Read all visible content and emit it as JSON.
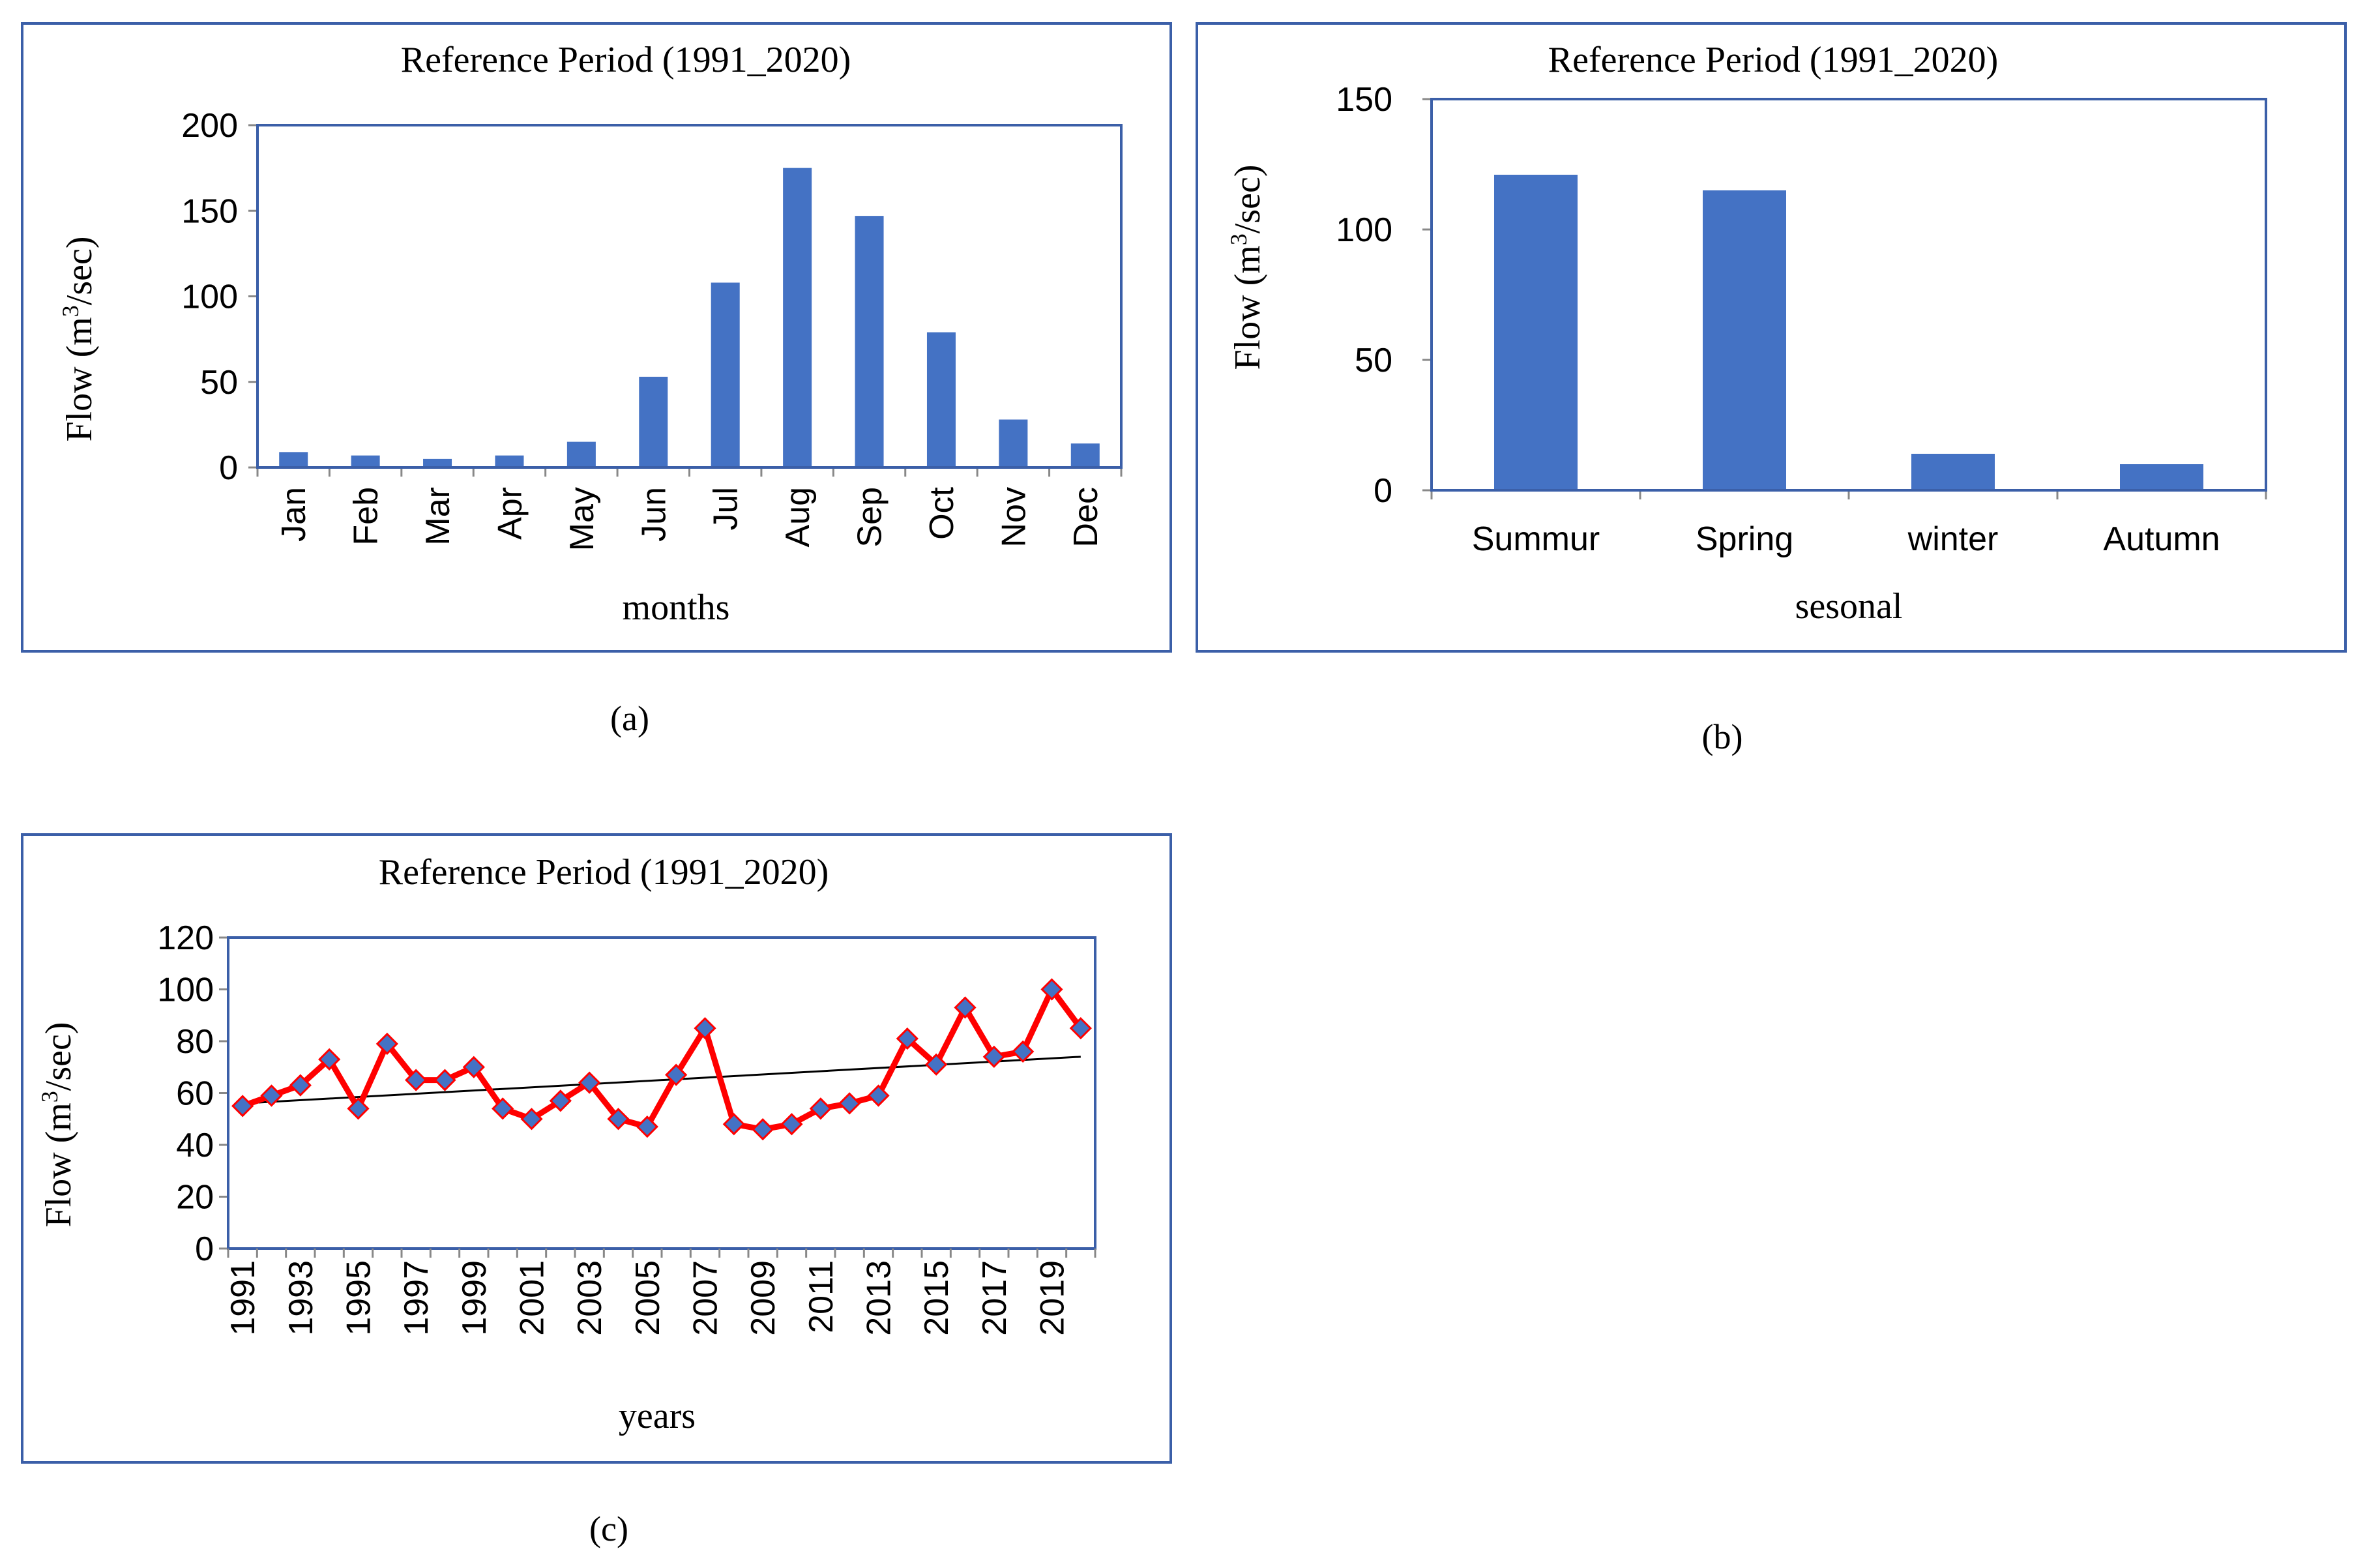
{
  "colors": {
    "bar": "#4472c4",
    "frame": "#3b5fa8",
    "line": "#ff0000",
    "marker": "#4472c4",
    "trend": "#000000"
  },
  "chart_data": [
    {
      "id": "a",
      "type": "bar",
      "title": "Reference Period (1991_2020)",
      "xlabel": "months",
      "ylabel": "Flow (m3/sec)",
      "ylim": [
        0,
        200
      ],
      "yticks": [
        0,
        50,
        100,
        150,
        200
      ],
      "categories": [
        "Jan",
        "Feb",
        "Mar",
        "Apr",
        "May",
        "Jun",
        "Jul",
        "Aug",
        "Sep",
        "Oct",
        "Nov",
        "Dec"
      ],
      "values": [
        9,
        7,
        5,
        7,
        15,
        53,
        108,
        175,
        147,
        79,
        28,
        14
      ],
      "caption": "(a)"
    },
    {
      "id": "b",
      "type": "bar",
      "title": "Reference Period (1991_2020)",
      "xlabel": "sesonal",
      "ylabel": "Flow (m3/sec)",
      "ylim": [
        0,
        150
      ],
      "yticks": [
        0,
        50,
        100,
        150
      ],
      "categories": [
        "Summur",
        "Spring",
        "winter",
        "Autumn"
      ],
      "values": [
        121,
        115,
        14,
        10
      ],
      "caption": "(b)"
    },
    {
      "id": "c",
      "type": "line",
      "title": "Reference Period (1991_2020)",
      "xlabel": "years",
      "ylabel": "Flow (m3/sec)",
      "ylim": [
        0,
        120
      ],
      "yticks": [
        0,
        20,
        40,
        60,
        80,
        100,
        120
      ],
      "x": [
        1991,
        1992,
        1993,
        1994,
        1995,
        1996,
        1997,
        1998,
        1999,
        2000,
        2001,
        2002,
        2003,
        2004,
        2005,
        2006,
        2007,
        2008,
        2009,
        2010,
        2011,
        2012,
        2013,
        2014,
        2015,
        2016,
        2017,
        2018,
        2019,
        2020
      ],
      "xtick_labels": [
        "1991",
        "1993",
        "1995",
        "1997",
        "1999",
        "2001",
        "2003",
        "2005",
        "2007",
        "2009",
        "2011",
        "2013",
        "2015",
        "2017",
        "2019"
      ],
      "series": [
        {
          "name": "Flow",
          "values": [
            55,
            59,
            63,
            73,
            54,
            79,
            65,
            65,
            70,
            54,
            50,
            57,
            64,
            50,
            47,
            67,
            85,
            48,
            46,
            48,
            54,
            56,
            59,
            81,
            71,
            93,
            74,
            76,
            100,
            85
          ]
        }
      ],
      "trendline": {
        "start": 56,
        "end": 74
      },
      "caption": "(c)"
    }
  ]
}
